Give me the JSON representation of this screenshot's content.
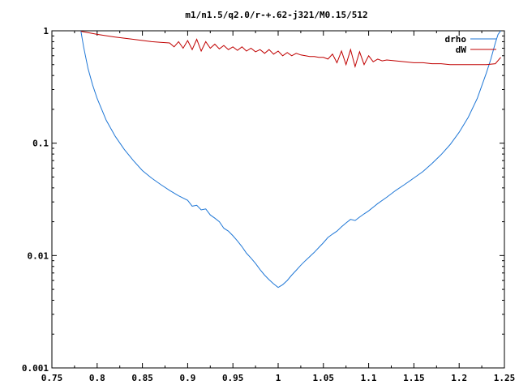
{
  "chart_data": {
    "type": "line",
    "title": "m1/n1.5/q2.0/r-+.62-j321/M0.15/512",
    "xlabel": "",
    "ylabel": "",
    "xlim": [
      0.75,
      1.25
    ],
    "ylim": [
      0.001,
      1
    ],
    "yscale": "log",
    "grid": false,
    "legend_position": "top-right",
    "x_tick_labels": [
      "0.75",
      "0.8",
      "0.85",
      "0.9",
      "0.95",
      "1",
      "1.05",
      "1.1",
      "1.15",
      "1.2",
      "1.25"
    ],
    "x_ticks": [
      0.75,
      0.8,
      0.85,
      0.9,
      0.95,
      1.0,
      1.05,
      1.1,
      1.15,
      1.2,
      1.25
    ],
    "y_tick_labels": [
      "0.001",
      "0.01",
      "0.1",
      "1"
    ],
    "y_ticks": [
      0.001,
      0.01,
      0.1,
      1
    ],
    "series": [
      {
        "name": "drho",
        "color": "#1f77d6",
        "x": [
          0.782,
          0.785,
          0.79,
          0.795,
          0.8,
          0.81,
          0.82,
          0.83,
          0.84,
          0.85,
          0.86,
          0.87,
          0.88,
          0.89,
          0.9,
          0.905,
          0.91,
          0.915,
          0.92,
          0.925,
          0.93,
          0.935,
          0.94,
          0.945,
          0.95,
          0.955,
          0.96,
          0.965,
          0.97,
          0.975,
          0.98,
          0.985,
          0.99,
          0.995,
          1.0,
          1.005,
          1.01,
          1.015,
          1.02,
          1.025,
          1.03,
          1.035,
          1.04,
          1.045,
          1.05,
          1.055,
          1.06,
          1.065,
          1.07,
          1.075,
          1.08,
          1.085,
          1.09,
          1.095,
          1.1,
          1.11,
          1.12,
          1.13,
          1.14,
          1.15,
          1.16,
          1.17,
          1.18,
          1.19,
          1.2,
          1.21,
          1.22,
          1.23,
          1.235,
          1.24,
          1.243,
          1.246
        ],
        "values": [
          1.0,
          0.72,
          0.46,
          0.33,
          0.25,
          0.16,
          0.115,
          0.088,
          0.07,
          0.057,
          0.049,
          0.043,
          0.038,
          0.034,
          0.031,
          0.0275,
          0.028,
          0.0255,
          0.026,
          0.023,
          0.0215,
          0.02,
          0.0175,
          0.0165,
          0.015,
          0.0135,
          0.012,
          0.0105,
          0.0095,
          0.0085,
          0.0075,
          0.0067,
          0.0061,
          0.0056,
          0.0052,
          0.0055,
          0.006,
          0.0067,
          0.0074,
          0.0082,
          0.009,
          0.0098,
          0.0107,
          0.0118,
          0.013,
          0.0145,
          0.0155,
          0.0165,
          0.018,
          0.0195,
          0.021,
          0.0205,
          0.022,
          0.0235,
          0.025,
          0.029,
          0.033,
          0.038,
          0.043,
          0.049,
          0.056,
          0.066,
          0.079,
          0.097,
          0.125,
          0.17,
          0.25,
          0.42,
          0.56,
          0.78,
          0.93,
          1.0
        ]
      },
      {
        "name": "dW",
        "color": "#c00000",
        "x": [
          0.782,
          0.8,
          0.82,
          0.84,
          0.86,
          0.87,
          0.88,
          0.885,
          0.89,
          0.895,
          0.9,
          0.905,
          0.91,
          0.915,
          0.92,
          0.925,
          0.93,
          0.935,
          0.94,
          0.945,
          0.95,
          0.955,
          0.96,
          0.965,
          0.97,
          0.975,
          0.98,
          0.985,
          0.99,
          0.995,
          1.0,
          1.005,
          1.01,
          1.015,
          1.02,
          1.025,
          1.03,
          1.035,
          1.04,
          1.045,
          1.05,
          1.055,
          1.06,
          1.065,
          1.07,
          1.075,
          1.08,
          1.085,
          1.09,
          1.095,
          1.1,
          1.105,
          1.11,
          1.115,
          1.12,
          1.13,
          1.14,
          1.15,
          1.16,
          1.17,
          1.18,
          1.19,
          1.2,
          1.21,
          1.22,
          1.23,
          1.24,
          1.246
        ],
        "values": [
          0.99,
          0.93,
          0.88,
          0.84,
          0.8,
          0.79,
          0.78,
          0.72,
          0.8,
          0.7,
          0.82,
          0.68,
          0.84,
          0.66,
          0.8,
          0.7,
          0.76,
          0.69,
          0.74,
          0.68,
          0.72,
          0.67,
          0.72,
          0.66,
          0.7,
          0.65,
          0.68,
          0.63,
          0.68,
          0.62,
          0.66,
          0.6,
          0.64,
          0.6,
          0.63,
          0.61,
          0.6,
          0.59,
          0.59,
          0.58,
          0.58,
          0.56,
          0.62,
          0.52,
          0.66,
          0.5,
          0.68,
          0.48,
          0.65,
          0.5,
          0.6,
          0.53,
          0.56,
          0.54,
          0.55,
          0.54,
          0.53,
          0.52,
          0.52,
          0.51,
          0.51,
          0.5,
          0.5,
          0.5,
          0.5,
          0.5,
          0.51,
          0.58
        ]
      }
    ]
  }
}
